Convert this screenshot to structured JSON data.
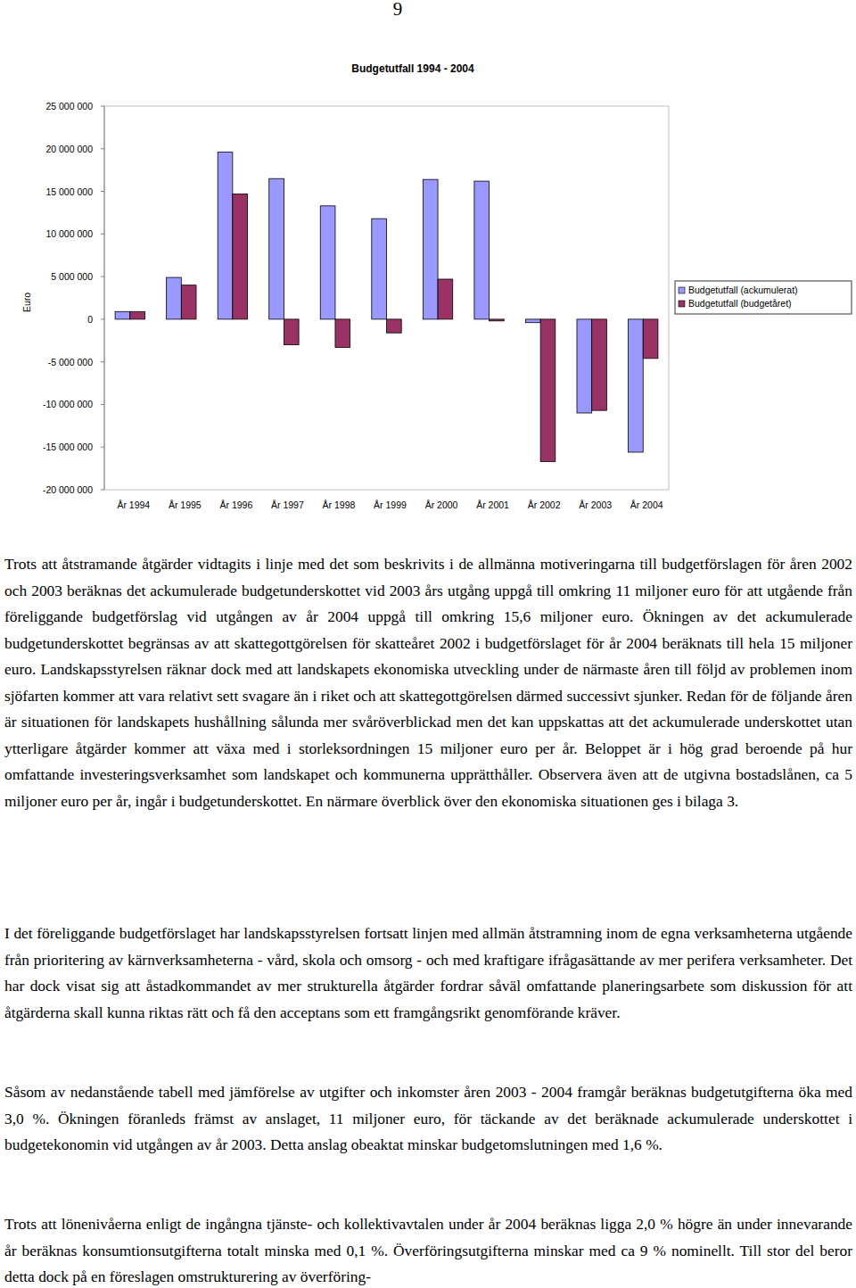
{
  "page_number": "9",
  "chart_data": {
    "type": "bar",
    "title": "Budgetutfall 1994 - 2004",
    "y_label": "Euro",
    "categories": [
      "År 1994",
      "År 1995",
      "År 1996",
      "År 1997",
      "År 1998",
      "År 1999",
      "År 2000",
      "År 2001",
      "År 2002",
      "År 2003",
      "År 2004"
    ],
    "series": [
      {
        "name": "Budgetutfall (ackumulerat)",
        "color": "#9999ff",
        "values": [
          900000,
          4900000,
          19600000,
          16500000,
          13300000,
          11800000,
          16400000,
          16200000,
          -400000,
          -11000000,
          -15600000
        ]
      },
      {
        "name": "Budgetutfall (budgetåret)",
        "color": "#993366",
        "values": [
          900000,
          4000000,
          14700000,
          -3000000,
          -3300000,
          -1600000,
          4700000,
          -200000,
          -16700000,
          -10700000,
          -4600000
        ]
      }
    ],
    "ylim": [
      -20000000,
      25000000
    ],
    "yticks": [
      {
        "value": -20000000,
        "label": "-20 000 000"
      },
      {
        "value": -15000000,
        "label": "-15 000 000"
      },
      {
        "value": -10000000,
        "label": "-10 000 000"
      },
      {
        "value": -5000000,
        "label": "-5 000 000"
      },
      0,
      {
        "value": 5000000,
        "label": "5 000 000"
      },
      {
        "value": 10000000,
        "label": "10 000 000"
      },
      {
        "value": 15000000,
        "label": "15 000 000"
      },
      {
        "value": 20000000,
        "label": "20 000 000"
      },
      {
        "value": 25000000,
        "label": "25 000 000"
      }
    ],
    "grid": false,
    "legend": "right"
  },
  "paragraphs": [
    "Trots att åtstramande åtgärder vidtagits i linje med det som beskrivits i de allmänna motiveringarna till budgetförslagen för åren 2002 och 2003 beräknas det ackumulerade budgetunderskottet vid 2003 års utgång uppgå till omkring 11 miljoner euro för att utgående från föreliggande budgetförslag vid utgången av år 2004 uppgå till omkring 15,6 miljoner euro. Ökningen av det ackumulerade budgetunderskottet begränsas av att skattegottgörelsen för skatteåret 2002 i budgetförslaget för år 2004 beräknats till hela 15 miljoner euro. Landskapsstyrelsen räknar dock med att landskapets ekonomiska utveckling under de närmaste åren till följd av problemen inom sjöfarten kommer att vara relativt sett svagare än i riket och att skattegottgörelsen därmed successivt sjunker. Redan för de följande åren är situationen för landskapets hushållning sålunda mer svåröverblickad men det kan uppskattas att det ackumulerade underskottet utan ytterligare åtgärder kommer att växa med i storleksordningen 15 miljoner euro per år. Beloppet är i hög grad beroende på hur omfattande investeringsverksamhet som landskapet och kommunerna upprätthåller. Observera även att de utgivna bostadslånen, ca 5 miljoner euro per år, ingår i budgetunderskottet. En närmare överblick över den ekonomiska situationen ges i bilaga 3.",
    "I det föreliggande budgetförslaget har landskapsstyrelsen fortsatt linjen med allmän åtstramning inom de egna verksamheterna utgående från prioritering av kärnverksamheterna - vård, skola och omsorg - och med kraftigare ifrågasättande av mer perifera verksamheter. Det har dock visat sig att åstadkommandet av mer strukturella åtgärder fordrar såväl omfattande planeringsarbete som diskussion för att åtgärderna skall kunna riktas rätt och få den acceptans som ett framgångsrikt genomförande kräver.",
    "Såsom av nedanstående tabell med jämförelse av utgifter och inkomster åren 2003 - 2004 framgår beräknas budgetutgifterna öka med 3,0 %. Ökningen föranleds främst av anslaget, 11 miljoner euro, för täckande av det beräknade ackumulerade underskottet i budgetekonomin vid utgången av år 2003. Detta anslag obeaktat minskar budgetomslutningen med 1,6 %.",
    "Trots att lönenivåerna enligt de ingångna tjänste- och kollektivavtalen under år 2004 beräknas ligga 2,0 % högre än under innevarande år beräknas konsumtionsutgifterna totalt minska med 0,1 %. Överföringsutgifterna minskar med ca 9 % nominellt. Till stor del beror detta dock på en föreslagen omstrukturering av överföring-"
  ]
}
